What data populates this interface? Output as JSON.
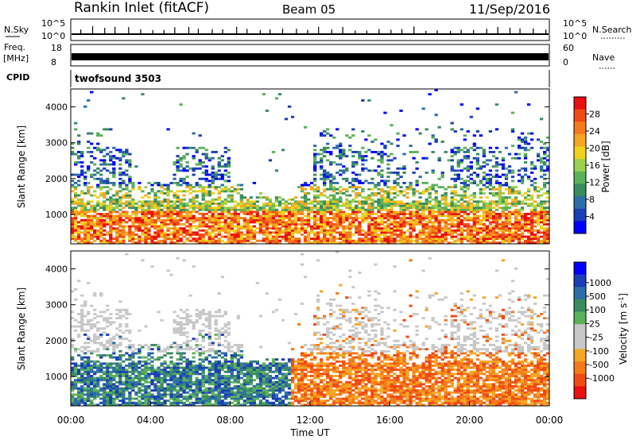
{
  "header": {
    "station": "Rankin Inlet (fitACF)",
    "beam": "Beam 05",
    "date": "11/Sep/2016"
  },
  "nsky_panel": {
    "left_label": "N.Sky",
    "right_label": "N.Search",
    "ticks_left": [
      "10^5",
      "10^0"
    ],
    "ticks_right": [
      "10^5",
      "10^0"
    ]
  },
  "freq_panel": {
    "left_label_1": "Freq.",
    "left_label_2": "[MHz]",
    "right_label": "Nave",
    "ticks_left": [
      "18",
      "8"
    ],
    "ticks_right": [
      "60",
      "0"
    ]
  },
  "cpid": {
    "label": "CPID",
    "program": "twofsound 3503"
  },
  "colors": {
    "power": [
      "#0000ff",
      "#1a3fb5",
      "#2e6ea8",
      "#3a8c5e",
      "#5bb15a",
      "#9ad04e",
      "#f0d21c",
      "#f5a623",
      "#f57a1a",
      "#f04a14",
      "#e81010"
    ],
    "velocity": [
      "#0000ff",
      "#1a3fb5",
      "#2e6ea8",
      "#3a8c5e",
      "#5bb15a",
      "#c8c8c8",
      "#c8c8c8",
      "#f5a623",
      "#f57a1a",
      "#f04a14",
      "#e81010"
    ],
    "ground_scatter": "#c8c8c8"
  },
  "chart_data": [
    {
      "type": "heatmap",
      "name": "power",
      "ylabel": "Slant Range [km]",
      "ylim": [
        180,
        4500
      ],
      "yticks": [
        "1000",
        "2000",
        "3000",
        "4000"
      ],
      "xlim": [
        "00:00",
        "24:00"
      ],
      "colorbar": {
        "label": "Power [dB]",
        "range": [
          0,
          32
        ],
        "tick_labels": [
          "4",
          "8",
          "12",
          "16",
          "20",
          "24",
          "28"
        ]
      }
    },
    {
      "type": "heatmap",
      "name": "velocity",
      "ylabel": "Slant Range [km]",
      "ylim": [
        180,
        4500
      ],
      "yticks": [
        "1000",
        "2000",
        "3000",
        "4000"
      ],
      "xlim": [
        "00:00",
        "24:00"
      ],
      "xticks": [
        "00:00",
        "04:00",
        "08:00",
        "12:00",
        "16:00",
        "20:00",
        "00:00"
      ],
      "xlabel": "Time UT",
      "colorbar": {
        "label": "Velocity [m s",
        "label_sup": "-1",
        "label_end": "]",
        "tick_labels": [
          "1000",
          "500",
          "100",
          "25",
          "-25",
          "-100",
          "-500",
          "-1000"
        ]
      }
    }
  ]
}
